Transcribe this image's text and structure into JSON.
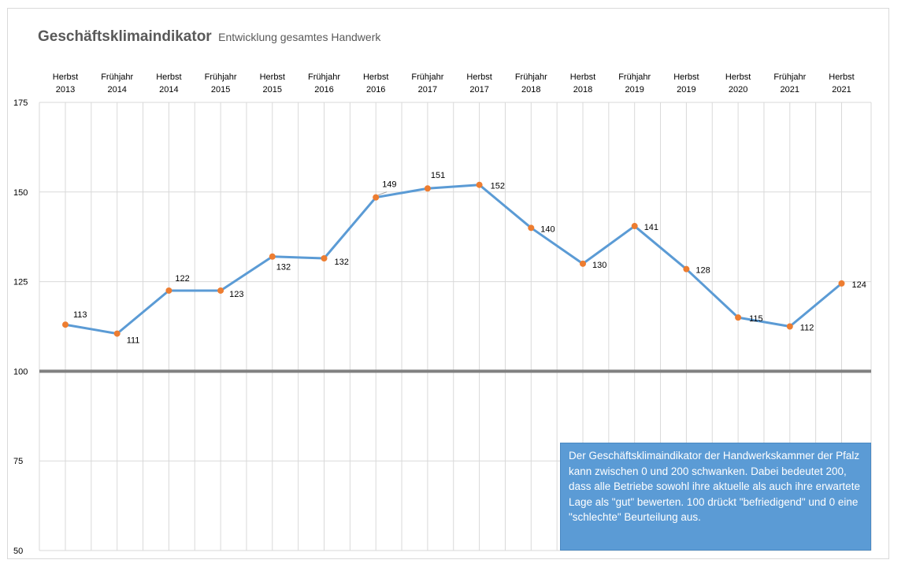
{
  "title": "Geschäftsklimaindikator",
  "subtitle": "Entwicklung gesamtes Handwerk",
  "info_text": "Der Geschäftsklimaindikator der Handwerkskammer der Pfalz kann zwischen 0 und 200 schwanken. Dabei bedeutet 200, dass alle Betriebe sowohl ihre aktuelle als auch ihre erwartete Lage als \"gut\" bewerten. 100 drückt \"befriedigend\" und 0 eine \"schlechte\" Beurteilung aus.",
  "colors": {
    "line": "#5b9bd5",
    "marker": "#ed7d31",
    "baseline": "#808080",
    "grid": "#d9d9d9",
    "info_box": "#5b9bd5"
  },
  "chart_data": {
    "type": "line",
    "title": "Geschäftsklimaindikator",
    "subtitle": "Entwicklung gesamtes Handwerk",
    "categories": [
      [
        "Herbst",
        "2013"
      ],
      [
        "Frühjahr",
        "2014"
      ],
      [
        "Herbst",
        "2014"
      ],
      [
        "Frühjahr",
        "2015"
      ],
      [
        "Herbst",
        "2015"
      ],
      [
        "Frühjahr",
        "2016"
      ],
      [
        "Herbst",
        "2016"
      ],
      [
        "Frühjahr",
        "2017"
      ],
      [
        "Herbst",
        "2017"
      ],
      [
        "Frühjahr",
        "2018"
      ],
      [
        "Herbst",
        "2018"
      ],
      [
        "Frühjahr",
        "2019"
      ],
      [
        "Herbst",
        "2019"
      ],
      [
        "Herbst",
        "2020"
      ],
      [
        "Frühjahr",
        "2021"
      ],
      [
        "Herbst",
        "2021"
      ]
    ],
    "values": [
      113,
      111,
      122,
      123,
      132,
      132,
      149,
      151,
      152,
      140,
      130,
      141,
      128,
      115,
      112,
      124
    ],
    "plotted_values": [
      113,
      110.5,
      122.5,
      122.5,
      132,
      131.5,
      148.5,
      151,
      152,
      140,
      130,
      140.5,
      128.5,
      115,
      112.5,
      124.5
    ],
    "ylim": [
      50,
      175
    ],
    "yticks": [
      50,
      75,
      100,
      125,
      150,
      175
    ],
    "reference_line": 100,
    "grid": true,
    "legend": "none",
    "xlabel": "",
    "ylabel": ""
  }
}
